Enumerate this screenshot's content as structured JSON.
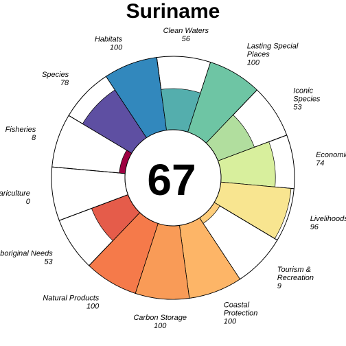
{
  "chart_data": {
    "type": "pie",
    "title": "Suriname",
    "center_score": "67",
    "scale_max": 100,
    "segments": [
      {
        "name_lines": [
          "Natural Products"
        ],
        "value": 100,
        "color": "#F57A4A"
      },
      {
        "name_lines": [
          "Aboriginal Needs"
        ],
        "value": 53,
        "color": "#E55C4A"
      },
      {
        "name_lines": [
          "Mariculture"
        ],
        "value": 0,
        "color": "#D53E4F"
      },
      {
        "name_lines": [
          "Fisheries"
        ],
        "value": 8,
        "color": "#9E0142"
      },
      {
        "name_lines": [
          "Species"
        ],
        "value": 78,
        "color": "#5E4FA2"
      },
      {
        "name_lines": [
          "Habitats"
        ],
        "value": 100,
        "color": "#3288BD"
      },
      {
        "name_lines": [
          "Clean Waters"
        ],
        "value": 56,
        "color": "#54AEAD"
      },
      {
        "name_lines": [
          "Lasting Special",
          "Places"
        ],
        "value": 100,
        "color": "#6EC5A4"
      },
      {
        "name_lines": [
          "Iconic",
          "Species"
        ],
        "value": 53,
        "color": "#B1DE9E"
      },
      {
        "name_lines": [
          "Economies"
        ],
        "value": 74,
        "color": "#D8EF9D"
      },
      {
        "name_lines": [
          "Livelihoods"
        ],
        "value": 96,
        "color": "#F8E590"
      },
      {
        "name_lines": [
          "Tourism &",
          "Recreation"
        ],
        "value": 9,
        "color": "#FDCD7B"
      },
      {
        "name_lines": [
          "Coastal",
          "Protection"
        ],
        "value": 100,
        "color": "#FDB567"
      },
      {
        "name_lines": [
          "Carbon Storage"
        ],
        "value": 100,
        "color": "#F99B57"
      }
    ]
  }
}
